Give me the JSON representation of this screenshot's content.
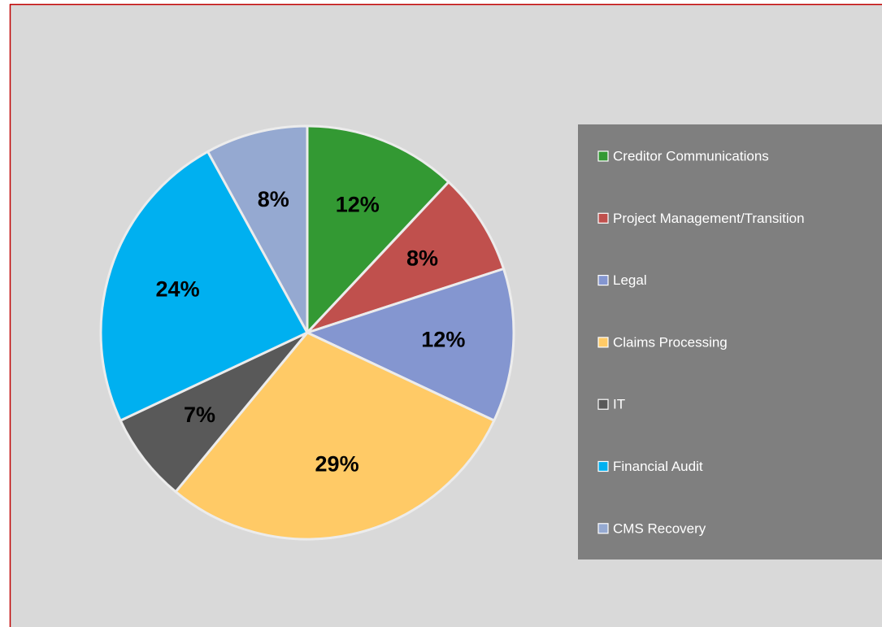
{
  "chart_data": {
    "type": "pie",
    "categories": [
      "Creditor Communications",
      "Project Management/Transition",
      "Legal",
      "Claims Processing",
      "IT",
      "Financial Audit",
      "CMS Recovery"
    ],
    "values": [
      12,
      8,
      12,
      29,
      7,
      24,
      8
    ],
    "value_labels": [
      "12%",
      "8%",
      "12%",
      "29%",
      "7%",
      "24%",
      "8%"
    ],
    "colors": [
      "#339933",
      "#c0504d",
      "#8496d0",
      "#ffca66",
      "#595959",
      "#00b0f0",
      "#95a9d1"
    ],
    "legend": "right"
  }
}
